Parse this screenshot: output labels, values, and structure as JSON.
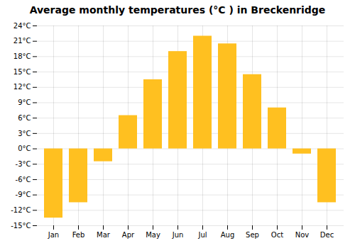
{
  "chart_data": {
    "type": "bar",
    "title": "Average monthly temperatures (°C ) in Breckenridge",
    "categories": [
      "Jan",
      "Feb",
      "Mar",
      "Apr",
      "May",
      "Jun",
      "Jul",
      "Aug",
      "Sep",
      "Oct",
      "Nov",
      "Dec"
    ],
    "values": [
      -13.5,
      -10.5,
      -2.5,
      6.5,
      13.5,
      19.0,
      22.0,
      20.5,
      14.5,
      8.0,
      -1.0,
      -10.5
    ],
    "color": "#FFC020",
    "ylim": [
      -15,
      24
    ],
    "yticks": [
      {
        "value": -15,
        "label": "-15°C"
      },
      {
        "value": -12,
        "label": "-12°C"
      },
      {
        "value": -9,
        "label": "-9°C"
      },
      {
        "value": -6,
        "label": "-6°C"
      },
      {
        "value": -3,
        "label": "-3°C"
      },
      {
        "value": 0,
        "label": "0°C"
      },
      {
        "value": 3,
        "label": "3°C"
      },
      {
        "value": 6,
        "label": "6°C"
      },
      {
        "value": 9,
        "label": "9°C"
      },
      {
        "value": 12,
        "label": "12°C"
      },
      {
        "value": 15,
        "label": "15°C"
      },
      {
        "value": 18,
        "label": "18°C"
      },
      {
        "value": 21,
        "label": "21°C"
      },
      {
        "value": 24,
        "label": "24°C"
      }
    ],
    "grid": true
  }
}
